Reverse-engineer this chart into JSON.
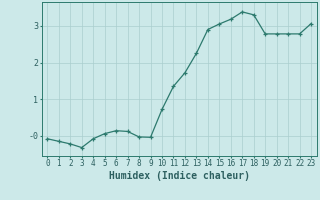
{
  "title": "",
  "xlabel": "Humidex (Indice chaleur)",
  "ylabel": "",
  "background_color": "#cce9e9",
  "line_color": "#2d7a6e",
  "marker": "+",
  "x": [
    0,
    1,
    2,
    3,
    4,
    5,
    6,
    7,
    8,
    9,
    10,
    11,
    12,
    13,
    14,
    15,
    16,
    17,
    18,
    19,
    20,
    21,
    22,
    23
  ],
  "y": [
    -0.08,
    -0.15,
    -0.22,
    -0.32,
    -0.08,
    0.06,
    0.14,
    0.12,
    -0.03,
    -0.04,
    0.72,
    1.35,
    1.72,
    2.25,
    2.9,
    3.05,
    3.18,
    3.38,
    3.3,
    2.78,
    2.78,
    2.78,
    2.78,
    3.06
  ],
  "ylim": [
    -0.55,
    3.65
  ],
  "xlim": [
    -0.5,
    23.5
  ],
  "yticks": [
    0,
    1,
    2,
    3
  ],
  "ytick_labels": [
    "-0",
    "1",
    "2",
    "3"
  ],
  "xticks": [
    0,
    1,
    2,
    3,
    4,
    5,
    6,
    7,
    8,
    9,
    10,
    11,
    12,
    13,
    14,
    15,
    16,
    17,
    18,
    19,
    20,
    21,
    22,
    23
  ],
  "grid_color": "#aacece",
  "spine_color": "#2d7a6e",
  "font_color": "#2d6060",
  "xlabel_fontsize": 7,
  "tick_fontsize": 5.5,
  "linewidth": 0.9,
  "markersize": 3.5
}
